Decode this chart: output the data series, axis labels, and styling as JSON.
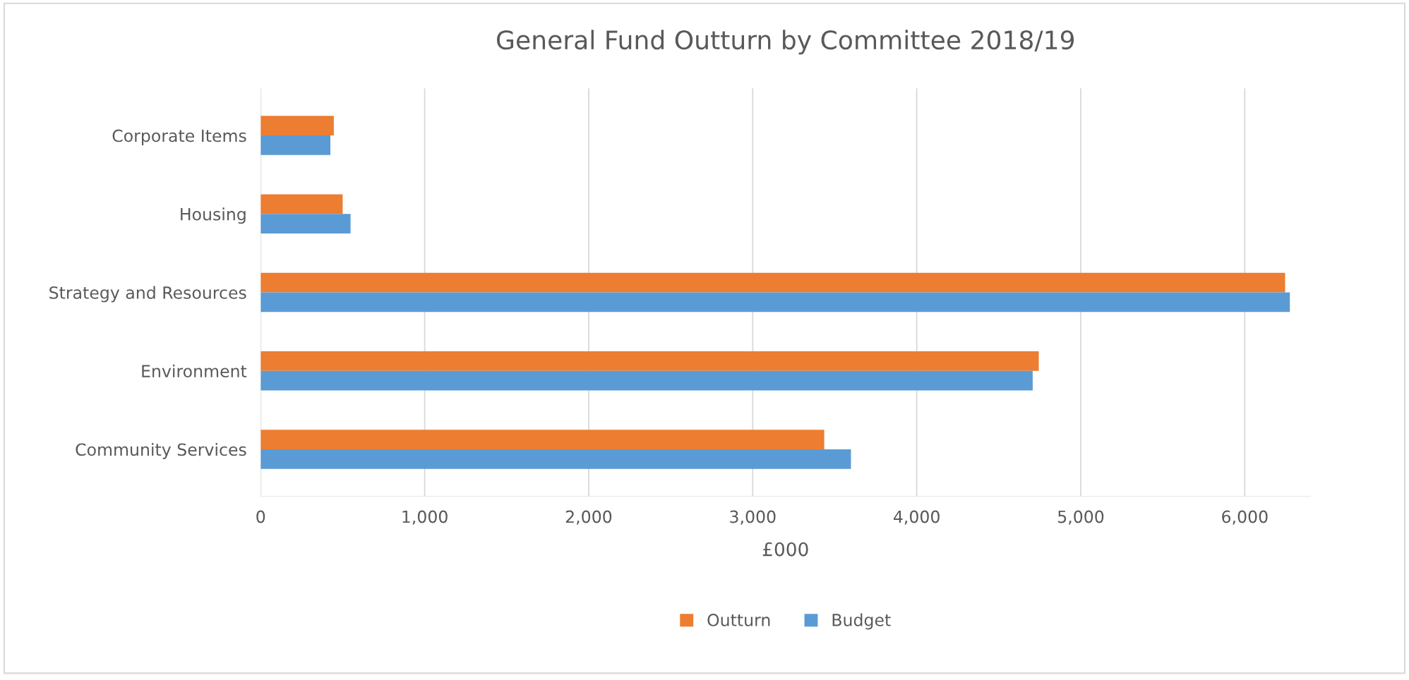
{
  "chart_data": {
    "type": "bar",
    "orientation": "horizontal",
    "title": "General Fund Outturn by Committee 2018/19",
    "xlabel": "£000",
    "categories": [
      "Corporate Items",
      "Housing",
      "Strategy and Resources",
      "Environment",
      "Community Services"
    ],
    "series": [
      {
        "name": "Outturn",
        "color": "#ed7d31",
        "values": [
          446,
          500,
          6246,
          4744,
          3436
        ]
      },
      {
        "name": "Budget",
        "color": "#5b9bd5",
        "values": [
          425,
          548,
          6275,
          4707,
          3599
        ]
      }
    ],
    "xlim": [
      0,
      6400
    ],
    "xticks": [
      0,
      {
        "value": 1000,
        "label": "1,000"
      },
      {
        "value": 2000,
        "label": "2,000"
      },
      {
        "value": 3000,
        "label": "3,000"
      },
      {
        "value": 4000,
        "label": "4,000"
      },
      {
        "value": 5000,
        "label": "5,000"
      },
      {
        "value": 6000,
        "label": "6,000"
      }
    ],
    "grid": "x",
    "legend": "bottom"
  }
}
